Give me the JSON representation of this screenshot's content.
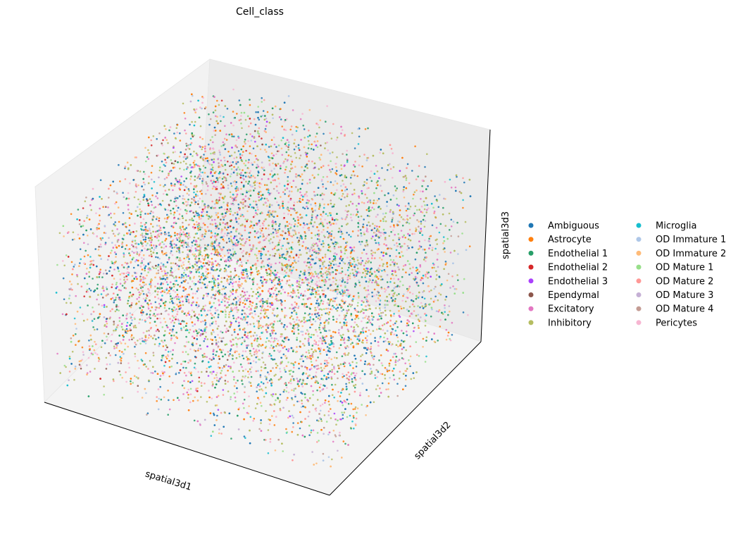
{
  "chart_data": {
    "type": "scatter",
    "projection": "3d",
    "title": "Cell_class",
    "xlabel": "spatial3d1",
    "ylabel": "spatial3d2",
    "zlabel": "spatial3d3",
    "grid": false,
    "legend_placement": "right",
    "legend_columns": 2,
    "point_count_note": "dense cloud of cells filling a box",
    "series": [
      {
        "name": "Ambiguous",
        "color": "#1f77b4",
        "weight": 10
      },
      {
        "name": "Astrocyte",
        "color": "#ff7f0e",
        "weight": 7
      },
      {
        "name": "Endothelial 1",
        "color": "#279e68",
        "weight": 8
      },
      {
        "name": "Endothelial 2",
        "color": "#d62728",
        "weight": 2
      },
      {
        "name": "Endothelial 3",
        "color": "#aa40fc",
        "weight": 1
      },
      {
        "name": "Ependymal",
        "color": "#8c564b",
        "weight": 2
      },
      {
        "name": "Excitatory",
        "color": "#e377c2",
        "weight": 8
      },
      {
        "name": "Inhibitory",
        "color": "#b5bd61",
        "weight": 12
      },
      {
        "name": "Microglia",
        "color": "#17becf",
        "weight": 3
      },
      {
        "name": "OD Immature 1",
        "color": "#aec7e8",
        "weight": 3
      },
      {
        "name": "OD Immature 2",
        "color": "#ffbb78",
        "weight": 6
      },
      {
        "name": "OD Mature 1",
        "color": "#98df8a",
        "weight": 5
      },
      {
        "name": "OD Mature 2",
        "color": "#ff9896",
        "weight": 7
      },
      {
        "name": "OD Mature 3",
        "color": "#c5b0d5",
        "weight": 3
      },
      {
        "name": "OD Mature 4",
        "color": "#c49c94",
        "weight": 3
      },
      {
        "name": "Pericytes",
        "color": "#f7b6d2",
        "weight": 7
      }
    ]
  }
}
